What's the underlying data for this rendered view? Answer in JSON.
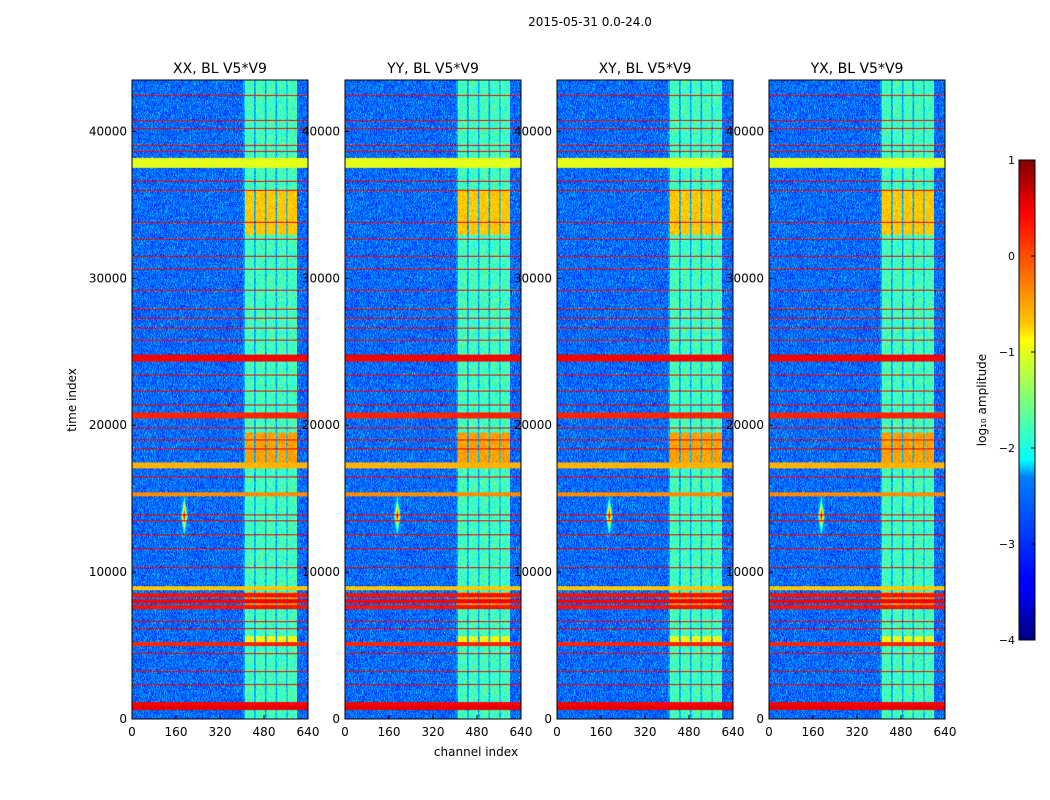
{
  "figure": {
    "suptitle": "2015-05-31 0.0-24.0",
    "xlabel": "channel index",
    "ylabel": "time index",
    "colorbar_label": "log₁₀ amplitude"
  },
  "chart_data": {
    "type": "heatmap",
    "colormap": "jet",
    "panels": [
      {
        "title": "XX, BL V5*V9",
        "key": "xx"
      },
      {
        "title": "YY, BL V5*V9",
        "key": "yy"
      },
      {
        "title": "XY, BL V5*V9",
        "key": "xy"
      },
      {
        "title": "YX, BL V5*V9",
        "key": "yx"
      }
    ],
    "xlim": [
      0,
      640
    ],
    "ylim": [
      0,
      43500
    ],
    "xticks": [
      0,
      160,
      320,
      480,
      640
    ],
    "xticklabels": [
      "0",
      "160",
      "320",
      "480",
      "640"
    ],
    "yticks": [
      0,
      10000,
      20000,
      30000,
      40000
    ],
    "yticklabels": [
      "0",
      "10000",
      "20000",
      "30000",
      "40000"
    ],
    "colorbar": {
      "vmin": -4,
      "vmax": 1,
      "ticks": [
        1,
        0,
        -1,
        -2,
        -3,
        -4
      ],
      "ticklabels": [
        "1",
        "0",
        "−1",
        "−2",
        "−3",
        "−4"
      ]
    },
    "background_level": -2.9,
    "rfi_band_channels": [
      405,
      600
    ],
    "rfi_band_level": -1.8,
    "bright_time_bands": [
      {
        "t0": 37600,
        "t1": 38200,
        "level": -1.0
      },
      {
        "t0": 24400,
        "t1": 24800,
        "level": 0.4
      },
      {
        "t0": 20500,
        "t1": 20800,
        "level": 0.2
      },
      {
        "t0": 17100,
        "t1": 17400,
        "level": -0.5
      },
      {
        "t0": 15200,
        "t1": 15400,
        "level": -0.3
      },
      {
        "t0": 8800,
        "t1": 9000,
        "level": -0.6
      },
      {
        "t0": 8300,
        "t1": 8500,
        "level": 0.3
      },
      {
        "t0": 7900,
        "t1": 8100,
        "level": 0.4
      },
      {
        "t0": 7500,
        "t1": 7700,
        "level": 0.3
      },
      {
        "t0": 5000,
        "t1": 5200,
        "level": 0.2
      },
      {
        "t0": 900,
        "t1": 1100,
        "level": 0.4
      },
      {
        "t0": 600,
        "t1": 800,
        "level": 0.5
      }
    ],
    "thin_lines": [
      42500,
      40800,
      40200,
      39100,
      38700,
      36600,
      36000,
      33800,
      32700,
      31500,
      30600,
      29200,
      27900,
      27300,
      26600,
      25800,
      23400,
      22300,
      21400,
      19800,
      19000,
      18400,
      16500,
      13900,
      13500,
      12500,
      11600,
      10300,
      6600,
      6100,
      4400,
      3200,
      2300
    ],
    "source": {
      "channel": 190,
      "time": 13800,
      "level": 0.6
    },
    "band_blocks": [
      {
        "t0": 33000,
        "t1": 36000,
        "level": -0.6
      },
      {
        "t0": 17500,
        "t1": 19500,
        "level": -0.4
      },
      {
        "t0": 7600,
        "t1": 8600,
        "level": -0.3
      },
      {
        "t0": 5200,
        "t1": 5600,
        "level": -0.9
      }
    ]
  }
}
